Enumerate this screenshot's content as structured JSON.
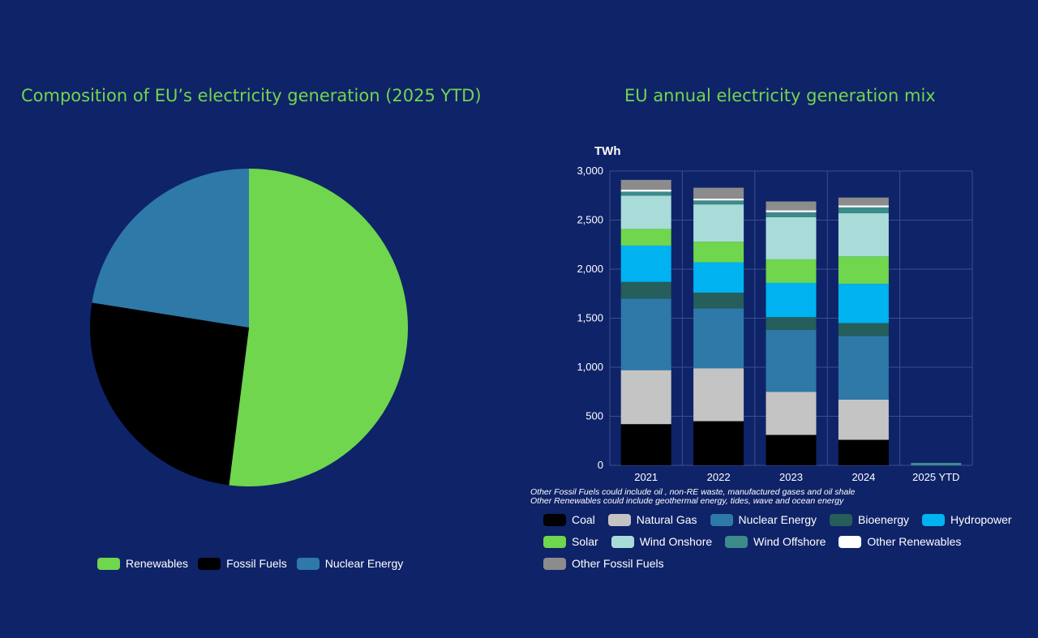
{
  "colors": {
    "background": "#0f2368",
    "title": "#72d64e",
    "coal": "#000000",
    "natural_gas": "#c4c4c4",
    "nuclear": "#2e79a8",
    "bioenergy": "#255e5a",
    "hydropower": "#00b2ef",
    "solar": "#6fd64d",
    "wind_onshore": "#a9dcd9",
    "wind_offshore": "#3c8b8a",
    "other_renewables": "#ffffff",
    "other_fossil": "#8c8c8c"
  },
  "chart_data": [
    {
      "type": "pie",
      "title": "Composition of EU’s electricity generation (2025 YTD)",
      "labels": [
        "Renewables",
        "Fossil Fuels",
        "Nuclear Energy"
      ],
      "values": [
        52.0,
        25.5,
        22.5
      ],
      "colors": [
        "#6fd64d",
        "#000000",
        "#2e79a8"
      ],
      "legend": "bottom"
    },
    {
      "type": "bar",
      "stacked": true,
      "title": "EU annual electricity generation mix",
      "ylabel": "TWh",
      "ylim": [
        0,
        3000
      ],
      "yticks": [
        "0",
        "500",
        "1,000",
        "1,500",
        "2,000",
        "2,500",
        "3,000"
      ],
      "categories": [
        "2021",
        "2022",
        "2023",
        "2024",
        "2025 YTD"
      ],
      "series": [
        {
          "name": "Coal",
          "color": "#000000",
          "values": [
            420,
            450,
            310,
            260,
            0
          ]
        },
        {
          "name": "Natural Gas",
          "color": "#c4c4c4",
          "values": [
            550,
            540,
            440,
            410,
            0
          ]
        },
        {
          "name": "Nuclear Energy",
          "color": "#2e79a8",
          "values": [
            730,
            610,
            630,
            650,
            0
          ]
        },
        {
          "name": "Bioenergy",
          "color": "#255e5a",
          "values": [
            170,
            160,
            130,
            130,
            0
          ]
        },
        {
          "name": "Hydropower",
          "color": "#00b2ef",
          "values": [
            370,
            310,
            350,
            400,
            0
          ]
        },
        {
          "name": "Solar",
          "color": "#6fd64d",
          "values": [
            170,
            210,
            240,
            280,
            0
          ]
        },
        {
          "name": "Wind Onshore",
          "color": "#a9dcd9",
          "values": [
            340,
            380,
            430,
            440,
            0
          ]
        },
        {
          "name": "Wind Offshore",
          "color": "#3c8b8a",
          "values": [
            40,
            40,
            50,
            60,
            0
          ]
        },
        {
          "name": "Other Renewables",
          "color": "#ffffff",
          "values": [
            20,
            20,
            20,
            20,
            0
          ]
        },
        {
          "name": "Other Fossil Fuels",
          "color": "#8c8c8c",
          "values": [
            100,
            110,
            90,
            80,
            0
          ]
        }
      ],
      "notes": [
        "Other Fossil Fuels could include oil , non-RE waste, manufactured gases and oil shale",
        "Other Renewables could include geothermal energy, tides, wave and ocean energy"
      ],
      "legend": "bottom",
      "grid": true
    }
  ]
}
